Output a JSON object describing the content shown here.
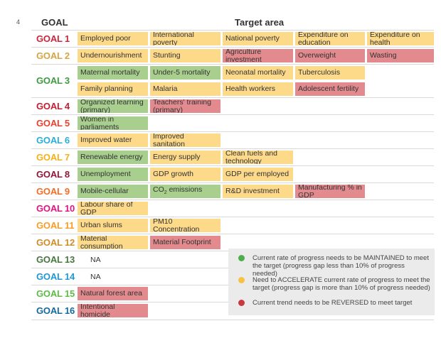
{
  "page_number": "4",
  "headers": {
    "goal": "GOAL",
    "target": "Target area"
  },
  "colors": {
    "maintain": "#a8cf8e",
    "accelerate": "#fdd98a",
    "reverse": "#e28a8e"
  },
  "goals": [
    {
      "label": "GOAL 1",
      "color": "#c8283c",
      "cells": [
        {
          "text": "Employed poor",
          "status": "accelerate"
        },
        {
          "text": "International poverty",
          "status": "accelerate"
        },
        {
          "text": "National poverty",
          "status": "accelerate"
        },
        {
          "text": "Expenditure on education",
          "status": "accelerate"
        },
        {
          "text": "Expenditure on health",
          "status": "accelerate"
        }
      ]
    },
    {
      "label": "GOAL 2",
      "color": "#d6a543",
      "cells": [
        {
          "text": "Undernourishment",
          "status": "accelerate"
        },
        {
          "text": "Stunting",
          "status": "accelerate"
        },
        {
          "text": "Agriculture investment",
          "status": "reverse"
        },
        {
          "text": "Overweight",
          "status": "reverse"
        },
        {
          "text": "Wasting",
          "status": "reverse"
        }
      ]
    },
    {
      "label": "GOAL 3",
      "color": "#3f9b40",
      "cells": [
        {
          "text": "Maternal mortality",
          "status": "maintain"
        },
        {
          "text": "Under-5 mortality",
          "status": "maintain"
        },
        {
          "text": "Neonatal mortality",
          "status": "accelerate"
        },
        {
          "text": "Tuberculosis",
          "status": "accelerate"
        },
        {
          "text": "Family planning",
          "status": "accelerate"
        },
        {
          "text": "Malaria",
          "status": "accelerate"
        },
        {
          "text": "Health workers",
          "status": "accelerate"
        },
        {
          "text": "Adolescent fertility",
          "status": "reverse"
        }
      ]
    },
    {
      "label": "GOAL 4",
      "color": "#c21f33",
      "cells": [
        {
          "text": "Organized learning (primary)",
          "status": "maintain"
        },
        {
          "text": "Teachers' training (primary)",
          "status": "reverse"
        }
      ]
    },
    {
      "label": "GOAL 5",
      "color": "#e8412c",
      "cells": [
        {
          "text": "Women in parliaments",
          "status": "maintain"
        }
      ]
    },
    {
      "label": "GOAL 6",
      "color": "#2aaed9",
      "cells": [
        {
          "text": "Improved water",
          "status": "accelerate"
        },
        {
          "text": "Improved sanitation",
          "status": "accelerate"
        }
      ]
    },
    {
      "label": "GOAL 7",
      "color": "#f5b117",
      "cells": [
        {
          "text": "Renewable energy",
          "status": "maintain"
        },
        {
          "text": "Energy supply",
          "status": "accelerate"
        },
        {
          "text": "Clean fuels and technology",
          "status": "accelerate"
        }
      ]
    },
    {
      "label": "GOAL 8",
      "color": "#8f1838",
      "cells": [
        {
          "text": "Unemployment",
          "status": "maintain"
        },
        {
          "text": "GDP growth",
          "status": "accelerate"
        },
        {
          "text": "GDP per employed",
          "status": "accelerate"
        }
      ]
    },
    {
      "label": "GOAL 9",
      "color": "#f36d25",
      "cells": [
        {
          "text": "Mobile-cellular",
          "status": "maintain"
        },
        {
          "text": "CO2 emissions",
          "status": "maintain"
        },
        {
          "text": "R&D investment",
          "status": "accelerate"
        },
        {
          "text": "Manufacturing % in GDP",
          "status": "reverse"
        }
      ]
    },
    {
      "label": "GOAL 10",
      "color": "#e11484",
      "cells": [
        {
          "text": "Labour share of GDP",
          "status": "accelerate"
        }
      ]
    },
    {
      "label": "GOAL 11",
      "color": "#f99d26",
      "cells": [
        {
          "text": "Urban slums",
          "status": "accelerate"
        },
        {
          "text": "PM10 Concentration",
          "status": "accelerate"
        }
      ]
    },
    {
      "label": "GOAL 12",
      "color": "#cf8d2a",
      "cells": [
        {
          "text": "Material consumption",
          "status": "accelerate"
        },
        {
          "text": "Material Footprint",
          "status": "reverse"
        }
      ]
    },
    {
      "label": "GOAL 13",
      "color": "#48773e",
      "na": "NA"
    },
    {
      "label": "GOAL 14",
      "color": "#1f97d4",
      "na": "NA"
    },
    {
      "label": "GOAL 15",
      "color": "#5dbb46",
      "cells": [
        {
          "text": "Natural forest area",
          "status": "reverse"
        }
      ]
    },
    {
      "label": "GOAL 16",
      "color": "#136a9f",
      "cells": [
        {
          "text": "Intentional homicide",
          "status": "reverse"
        }
      ]
    }
  ],
  "legend": [
    {
      "status": "maintain",
      "dot_color": "#4cae4c",
      "text": "Current rate of progress needs to be MAINTAINED to meet the target (progress gap less than 10% of progress needed)"
    },
    {
      "status": "accelerate",
      "dot_color": "#f6c343",
      "text": "Need to ACCELERATE current rate of progress to meet the  target (progress gap is more than 10% of progress needed)"
    },
    {
      "status": "reverse",
      "dot_color": "#c9373f",
      "text": "Current trend needs to be REVERSED to meet target"
    }
  ]
}
